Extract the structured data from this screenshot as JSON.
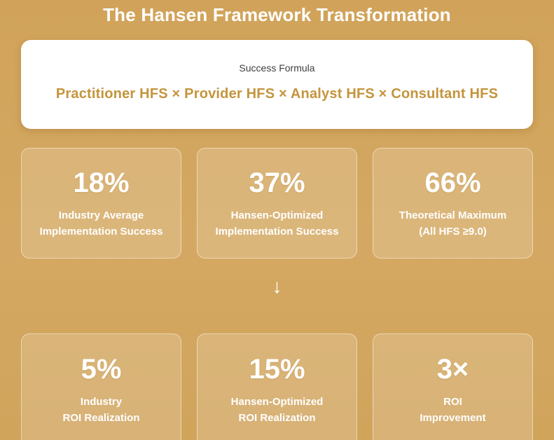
{
  "page": {
    "title": "The Hansen Framework Transformation"
  },
  "formula_card": {
    "label": "Success Formula",
    "formula": "Practitioner HFS × Provider HFS × Analyst HFS × Consultant HFS"
  },
  "arrow": {
    "glyph": "↓"
  },
  "stats_row1": [
    {
      "value": "18%",
      "label_line1": "Industry Average",
      "label_line2": "Implementation Success"
    },
    {
      "value": "37%",
      "label_line1": "Hansen-Optimized",
      "label_line2": "Implementation Success"
    },
    {
      "value": "66%",
      "label_line1": "Theoretical Maximum",
      "label_line2": "(All HFS ≥9.0)"
    }
  ],
  "stats_row2": [
    {
      "value": "5%",
      "label_line1": "Industry",
      "label_line2": "ROI Realization"
    },
    {
      "value": "15%",
      "label_line1": "Hansen-Optimized",
      "label_line2": "ROI Realization"
    },
    {
      "value": "3×",
      "label_line1": "ROI",
      "label_line2": "Improvement"
    }
  ],
  "colors": {
    "background": "#D2A55E",
    "card_background": "rgba(255,255,255,0.16)",
    "card_border": "rgba(255,255,255,0.45)",
    "white_card": "#FFFFFF",
    "title_text": "#FFFFFF",
    "formula_text": "#C4943C",
    "formula_label_text": "#3F3F3F",
    "stat_text": "#FFFFFF"
  }
}
